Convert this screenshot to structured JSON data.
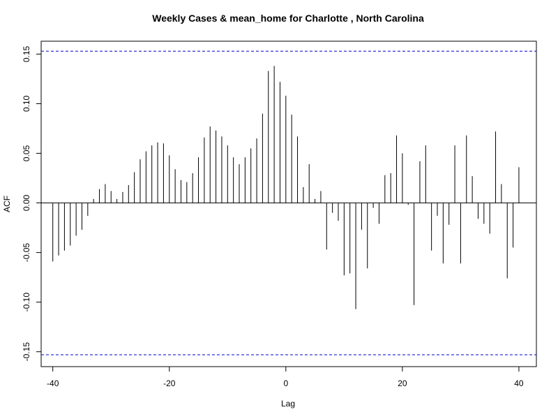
{
  "chart_data": {
    "type": "bar",
    "subtype": "ccf-stem",
    "title": "Weekly Cases & mean_home for Charlotte , North Carolina",
    "xlabel": "Lag",
    "ylabel": "ACF",
    "xlim": [
      -42,
      43
    ],
    "ylim": [
      -0.165,
      0.163
    ],
    "x_ticks": [
      -40,
      -20,
      0,
      20,
      40
    ],
    "y_ticks": [
      -0.15,
      -0.1,
      -0.05,
      0.0,
      0.05,
      0.1,
      0.15
    ],
    "y_tick_labels": [
      "-0.15",
      "-0.10",
      "-0.05",
      "0.00",
      "0.05",
      "0.10",
      "0.15"
    ],
    "confidence_band": 0.153,
    "grid": false,
    "legend": false,
    "series": [
      {
        "x": [
          -40,
          -39,
          -38,
          -37,
          -36,
          -35,
          -34,
          -33,
          -32,
          -31,
          -30,
          -29,
          -28,
          -27,
          -26,
          -25,
          -24,
          -23,
          -22,
          -21,
          -20,
          -19,
          -18,
          -17,
          -16,
          -15,
          -14,
          -13,
          -12,
          -11,
          -10,
          -9,
          -8,
          -7,
          -6,
          -5,
          -4,
          -3,
          -2,
          -1,
          0,
          1,
          2,
          3,
          4,
          5,
          6,
          7,
          8,
          9,
          10,
          11,
          12,
          13,
          14,
          15,
          16,
          17,
          18,
          19,
          20,
          21,
          22,
          23,
          24,
          25,
          26,
          27,
          28,
          29,
          30,
          31,
          32,
          33,
          34,
          35,
          36,
          37,
          38,
          39,
          40
        ],
        "values": [
          -0.059,
          -0.053,
          -0.048,
          -0.043,
          -0.033,
          -0.027,
          -0.013,
          0.004,
          0.014,
          0.019,
          0.012,
          0.004,
          0.011,
          0.018,
          0.031,
          0.044,
          0.052,
          0.058,
          0.061,
          0.06,
          0.048,
          0.034,
          0.023,
          0.021,
          0.03,
          0.046,
          0.066,
          0.077,
          0.073,
          0.067,
          0.058,
          0.046,
          0.039,
          0.046,
          0.055,
          0.065,
          0.09,
          0.133,
          0.138,
          0.122,
          0.108,
          0.089,
          0.067,
          0.016,
          0.039,
          0.004,
          0.012,
          -0.047,
          -0.01,
          -0.018,
          -0.073,
          -0.071,
          -0.107,
          -0.027,
          -0.066,
          -0.005,
          -0.021,
          0.028,
          0.03,
          0.068,
          0.05,
          -0.002,
          -0.103,
          0.042,
          0.058,
          -0.048,
          -0.013,
          -0.061,
          -0.022,
          0.058,
          -0.061,
          0.068,
          0.027,
          -0.016,
          -0.021,
          -0.031,
          0.072,
          0.019,
          -0.076,
          -0.045,
          0.036
        ]
      }
    ]
  }
}
